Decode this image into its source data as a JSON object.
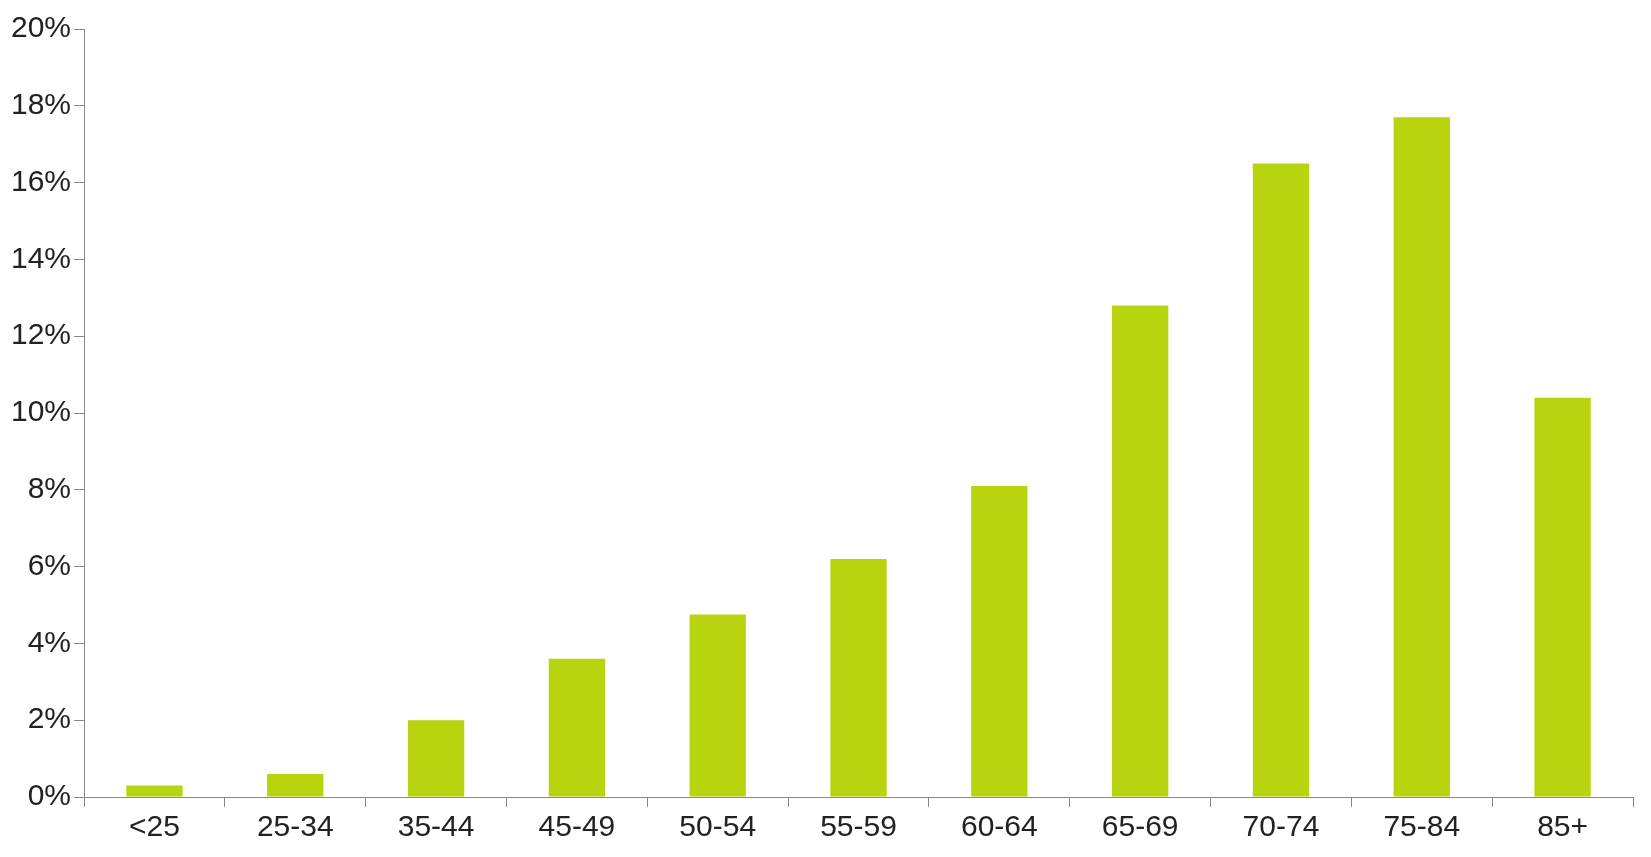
{
  "chart_data": {
    "type": "bar",
    "categories": [
      "<25",
      "25-34",
      "35-44",
      "45-49",
      "50-54",
      "55-59",
      "60-64",
      "65-69",
      "70-74",
      "75-84",
      "85+"
    ],
    "values": [
      0.3,
      0.6,
      2.0,
      3.6,
      4.75,
      6.2,
      8.1,
      12.8,
      16.5,
      17.7,
      10.4
    ],
    "color": "#b8d40f",
    "ylim": [
      0,
      20
    ],
    "yticks": [
      {
        "value": 0,
        "label": "0%"
      },
      {
        "value": 2,
        "label": "2%"
      },
      {
        "value": 4,
        "label": "4%"
      },
      {
        "value": 6,
        "label": "6%"
      },
      {
        "value": 8,
        "label": "8%"
      },
      {
        "value": 10,
        "label": "10%"
      },
      {
        "value": 12,
        "label": "12%"
      },
      {
        "value": 14,
        "label": "14%"
      },
      {
        "value": 16,
        "label": "16%"
      },
      {
        "value": 18,
        "label": "18%"
      },
      {
        "value": 20,
        "label": "20%"
      }
    ]
  }
}
